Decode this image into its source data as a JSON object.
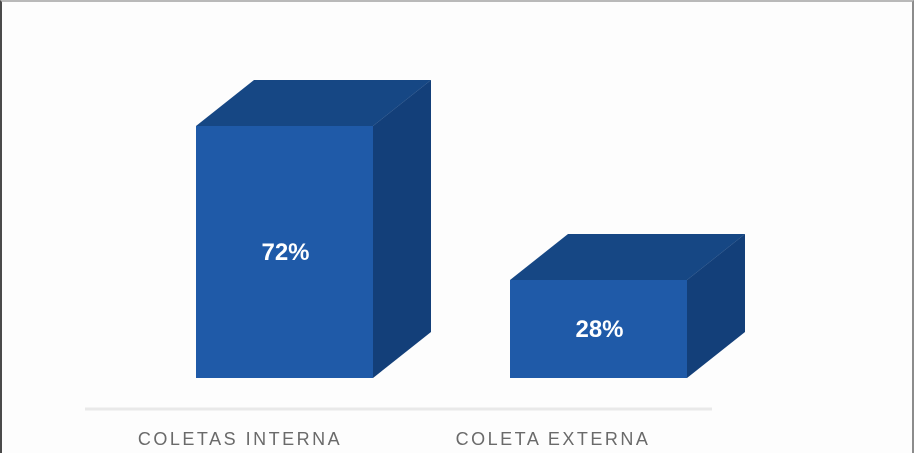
{
  "chart_data": {
    "type": "bar",
    "categories": [
      "COLETAS INTERNA",
      "COLETA EXTERNA"
    ],
    "values": [
      72,
      28
    ],
    "data_labels": [
      "72%",
      "28%"
    ],
    "ylim": [
      0,
      100
    ],
    "grid": false,
    "legend": "none",
    "style": "3d-box"
  },
  "colors": {
    "bar_front": "#1f5aa8",
    "bar_top": "#164784",
    "bar_side": "#133f79",
    "baseline": "#e9e9e9",
    "category_text": "#6a6a6a",
    "value_text": "#ffffff"
  }
}
